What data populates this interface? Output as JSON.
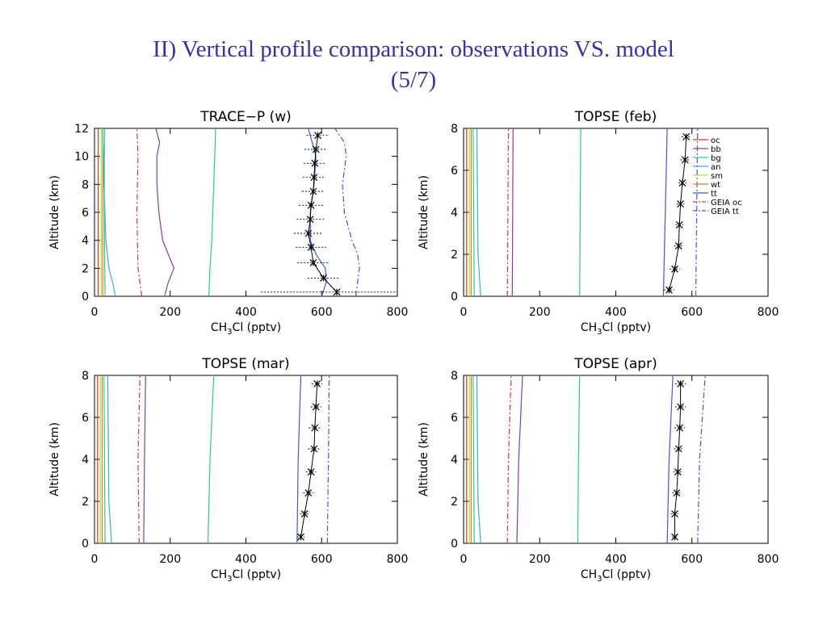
{
  "slide": {
    "title_line1": "II) Vertical profile comparison: observations VS. model",
    "title_line2": "(5/7)"
  },
  "colors": {
    "oc": "#e03030",
    "bb": "#8a3aa8",
    "bg": "#2ad07a",
    "an": "#30b0e0",
    "sm": "#b8e020",
    "wt": "#e08010",
    "tt": "#3a5ad8",
    "geia_oc": "#e03030",
    "geia_tt": "#3a5ad8",
    "obs": "#000000"
  },
  "legend": {
    "entries": [
      {
        "key": "oc",
        "label": "oc",
        "dash": "solid"
      },
      {
        "key": "bb",
        "label": "bb",
        "dash": "solid"
      },
      {
        "key": "bg",
        "label": "bg",
        "dash": "solid"
      },
      {
        "key": "an",
        "label": "an",
        "dash": "solid"
      },
      {
        "key": "sm",
        "label": "sm",
        "dash": "solid"
      },
      {
        "key": "wt",
        "label": "wt",
        "dash": "solid"
      },
      {
        "key": "tt",
        "label": "tt",
        "dash": "solid"
      },
      {
        "key": "geia_oc",
        "label": "GEIA oc",
        "dash": "dashdot"
      },
      {
        "key": "geia_tt",
        "label": "GEIA tt",
        "dash": "dashdot"
      }
    ]
  },
  "chart_data": [
    {
      "type": "line",
      "title": "TRACE−P (w)",
      "xlabel": "CH3Cl (pptv)",
      "ylabel": "Altitude (km)",
      "xlim": [
        0,
        800
      ],
      "ylim": [
        0,
        12
      ],
      "xticks": [
        0,
        200,
        400,
        600,
        800
      ],
      "yticks": [
        0,
        2,
        4,
        6,
        8,
        10,
        12
      ],
      "legend": false,
      "series": [
        {
          "key": "oc",
          "points": [
            [
              10,
              0
            ],
            [
              10,
              12
            ]
          ]
        },
        {
          "key": "sm",
          "points": [
            [
              18,
              0
            ],
            [
              18,
              12
            ]
          ]
        },
        {
          "key": "wt",
          "points": [
            [
              22,
              0
            ],
            [
              22,
              12
            ]
          ]
        },
        {
          "key": "bg",
          "points": [
            [
              28,
              0
            ],
            [
              27,
              2
            ],
            [
              26,
              6
            ],
            [
              26,
              10
            ],
            [
              27,
              12
            ]
          ]
        },
        {
          "key": "an",
          "points": [
            [
              55,
              0
            ],
            [
              48,
              1
            ],
            [
              38,
              2
            ],
            [
              30,
              4
            ],
            [
              25,
              8
            ],
            [
              22,
              12
            ]
          ]
        },
        {
          "key": "geia_oc",
          "points": [
            [
              125,
              0
            ],
            [
              115,
              2
            ],
            [
              112,
              6
            ],
            [
              115,
              10
            ],
            [
              112,
              12
            ]
          ]
        },
        {
          "key": "bb",
          "points": [
            [
              185,
              0
            ],
            [
              195,
              1
            ],
            [
              210,
              2
            ],
            [
              195,
              3
            ],
            [
              180,
              4
            ],
            [
              170,
              6
            ],
            [
              165,
              8
            ],
            [
              165,
              10
            ],
            [
              172,
              11
            ],
            [
              162,
              12
            ]
          ]
        },
        {
          "key": "bg",
          "points": [
            [
              302,
              0
            ],
            [
              305,
              2
            ],
            [
              310,
              4
            ],
            [
              315,
              8
            ],
            [
              320,
              12
            ]
          ]
        },
        {
          "key": "tt",
          "points": [
            [
              600,
              0
            ],
            [
              612,
              1
            ],
            [
              610,
              2
            ],
            [
              585,
              3
            ],
            [
              570,
              4
            ],
            [
              570,
              6
            ],
            [
              580,
              8
            ],
            [
              585,
              10
            ],
            [
              575,
              11
            ],
            [
              565,
              12
            ]
          ]
        },
        {
          "key": "geia_tt",
          "points": [
            [
              690,
              0
            ],
            [
              700,
              2
            ],
            [
              695,
              3
            ],
            [
              680,
              4
            ],
            [
              660,
              6
            ],
            [
              655,
              8
            ],
            [
              665,
              10
            ],
            [
              660,
              11
            ],
            [
              635,
              12
            ]
          ]
        },
        {
          "key": "obs",
          "points": [
            [
              640,
              0.3
            ],
            [
              605,
              1.3
            ],
            [
              578,
              2.4
            ],
            [
              572,
              3.5
            ],
            [
              565,
              4.5
            ],
            [
              570,
              5.5
            ],
            [
              572,
              6.5
            ],
            [
              578,
              7.5
            ],
            [
              580,
              8.5
            ],
            [
              582,
              9.5
            ],
            [
              585,
              10.5
            ],
            [
              590,
              11.5
            ]
          ],
          "xerr": [
            200,
            42,
            42,
            40,
            38,
            36,
            32,
            30,
            30,
            30,
            30,
            30
          ],
          "markers": true
        }
      ]
    },
    {
      "type": "line",
      "title": "TOPSE (feb)",
      "xlabel": "CH3Cl (pptv)",
      "ylabel": "Altitude (km)",
      "xlim": [
        0,
        800
      ],
      "ylim": [
        0,
        8
      ],
      "xticks": [
        0,
        200,
        400,
        600,
        800
      ],
      "yticks": [
        0,
        2,
        4,
        6,
        8
      ],
      "legend": true,
      "legend_position": "top-right",
      "series": [
        {
          "key": "oc",
          "points": [
            [
              8,
              0
            ],
            [
              8,
              8
            ]
          ]
        },
        {
          "key": "sm",
          "points": [
            [
              15,
              0
            ],
            [
              15,
              8
            ]
          ]
        },
        {
          "key": "wt",
          "points": [
            [
              20,
              0
            ],
            [
              20,
              8
            ]
          ]
        },
        {
          "key": "bg",
          "points": [
            [
              28,
              0
            ],
            [
              25,
              8
            ]
          ]
        },
        {
          "key": "an",
          "points": [
            [
              45,
              0
            ],
            [
              38,
              2
            ],
            [
              35,
              8
            ]
          ]
        },
        {
          "key": "geia_oc",
          "points": [
            [
              115,
              0
            ],
            [
              118,
              8
            ]
          ]
        },
        {
          "key": "bb",
          "points": [
            [
              128,
              0
            ],
            [
              130,
              8
            ]
          ]
        },
        {
          "key": "bg",
          "points": [
            [
              305,
              0
            ],
            [
              308,
              8
            ]
          ]
        },
        {
          "key": "tt",
          "points": [
            [
              525,
              0
            ],
            [
              530,
              4
            ],
            [
              535,
              8
            ]
          ]
        },
        {
          "key": "geia_tt",
          "points": [
            [
              610,
              0
            ],
            [
              615,
              8
            ]
          ]
        },
        {
          "key": "obs",
          "points": [
            [
              540,
              0.3
            ],
            [
              555,
              1.3
            ],
            [
              565,
              2.4
            ],
            [
              567,
              3.4
            ],
            [
              570,
              4.4
            ],
            [
              575,
              5.4
            ],
            [
              582,
              6.5
            ],
            [
              585,
              7.6
            ]
          ],
          "xerr": [
            14,
            14,
            12,
            10,
            10,
            10,
            12,
            12
          ],
          "markers": true
        }
      ]
    },
    {
      "type": "line",
      "title": "TOPSE (mar)",
      "xlabel": "CH3Cl (pptv)",
      "ylabel": "Altitude (km)",
      "xlim": [
        0,
        800
      ],
      "ylim": [
        0,
        8
      ],
      "xticks": [
        0,
        200,
        400,
        600,
        800
      ],
      "yticks": [
        0,
        2,
        4,
        6,
        8
      ],
      "legend": false,
      "series": [
        {
          "key": "oc",
          "points": [
            [
              8,
              0
            ],
            [
              8,
              8
            ]
          ]
        },
        {
          "key": "sm",
          "points": [
            [
              15,
              0
            ],
            [
              15,
              8
            ]
          ]
        },
        {
          "key": "wt",
          "points": [
            [
              20,
              0
            ],
            [
              20,
              8
            ]
          ]
        },
        {
          "key": "bg",
          "points": [
            [
              28,
              0
            ],
            [
              25,
              8
            ]
          ]
        },
        {
          "key": "an",
          "points": [
            [
              45,
              0
            ],
            [
              38,
              2
            ],
            [
              35,
              8
            ]
          ]
        },
        {
          "key": "geia_oc",
          "points": [
            [
              118,
              0
            ],
            [
              115,
              4
            ],
            [
              120,
              8
            ]
          ]
        },
        {
          "key": "bb",
          "points": [
            [
              130,
              0
            ],
            [
              132,
              4
            ],
            [
              135,
              8
            ]
          ]
        },
        {
          "key": "bg",
          "points": [
            [
              300,
              0
            ],
            [
              305,
              4
            ],
            [
              315,
              8
            ]
          ]
        },
        {
          "key": "tt",
          "points": [
            [
              535,
              0
            ],
            [
              538,
              4
            ],
            [
              545,
              8
            ]
          ]
        },
        {
          "key": "geia_tt",
          "points": [
            [
              615,
              0
            ],
            [
              618,
              4
            ],
            [
              620,
              8
            ]
          ]
        },
        {
          "key": "obs",
          "points": [
            [
              545,
              0.3
            ],
            [
              555,
              1.4
            ],
            [
              565,
              2.4
            ],
            [
              572,
              3.4
            ],
            [
              580,
              4.5
            ],
            [
              582,
              5.5
            ],
            [
              585,
              6.5
            ],
            [
              588,
              7.6
            ]
          ],
          "xerr": [
            10,
            12,
            14,
            14,
            16,
            16,
            14,
            14
          ],
          "markers": true
        }
      ]
    },
    {
      "type": "line",
      "title": "TOPSE (apr)",
      "xlabel": "CH3Cl (pptv)",
      "ylabel": "Altitude (km)",
      "xlim": [
        0,
        800
      ],
      "ylim": [
        0,
        8
      ],
      "xticks": [
        0,
        200,
        400,
        600,
        800
      ],
      "yticks": [
        0,
        2,
        4,
        6,
        8
      ],
      "legend": false,
      "series": [
        {
          "key": "oc",
          "points": [
            [
              8,
              0
            ],
            [
              8,
              8
            ]
          ]
        },
        {
          "key": "sm",
          "points": [
            [
              15,
              0
            ],
            [
              15,
              8
            ]
          ]
        },
        {
          "key": "wt",
          "points": [
            [
              20,
              0
            ],
            [
              20,
              8
            ]
          ]
        },
        {
          "key": "bg",
          "points": [
            [
              28,
              0
            ],
            [
              25,
              8
            ]
          ]
        },
        {
          "key": "an",
          "points": [
            [
              45,
              0
            ],
            [
              38,
              2
            ],
            [
              35,
              8
            ]
          ]
        },
        {
          "key": "geia_oc",
          "points": [
            [
              115,
              0
            ],
            [
              118,
              4
            ],
            [
              125,
              8
            ]
          ]
        },
        {
          "key": "bb",
          "points": [
            [
              140,
              0
            ],
            [
              145,
              4
            ],
            [
              155,
              8
            ]
          ]
        },
        {
          "key": "bg",
          "points": [
            [
              300,
              0
            ],
            [
              302,
              4
            ],
            [
              305,
              8
            ]
          ]
        },
        {
          "key": "tt",
          "points": [
            [
              535,
              0
            ],
            [
              540,
              4
            ],
            [
              550,
              8
            ]
          ]
        },
        {
          "key": "geia_tt",
          "points": [
            [
              615,
              0
            ],
            [
              620,
              4
            ],
            [
              635,
              8
            ]
          ]
        },
        {
          "key": "obs",
          "points": [
            [
              555,
              0.3
            ],
            [
              555,
              1.4
            ],
            [
              560,
              2.4
            ],
            [
              563,
              3.4
            ],
            [
              565,
              4.5
            ],
            [
              568,
              5.5
            ],
            [
              570,
              6.5
            ],
            [
              570,
              7.6
            ]
          ],
          "xerr": [
            8,
            10,
            12,
            12,
            12,
            14,
            14,
            14
          ],
          "markers": true
        }
      ]
    }
  ]
}
